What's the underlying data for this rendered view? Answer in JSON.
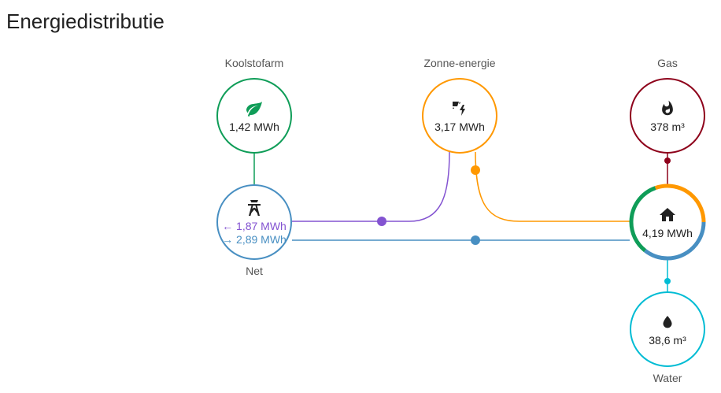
{
  "title": "Energiedistributie",
  "colors": {
    "low_carbon": "#0f9d58",
    "solar": "#ff9800",
    "grid_return": "#8353d1",
    "grid_consumption": "#488fc2",
    "gas": "#8e021b",
    "water": "#00bcd4"
  },
  "nodes": {
    "low_carbon": {
      "label": "Koolstofarm",
      "value": "1,42 MWh",
      "icon": "leaf-icon"
    },
    "solar": {
      "label": "Zonne-energie",
      "value": "3,17 MWh",
      "icon": "solar-power-icon"
    },
    "gas": {
      "label": "Gas",
      "value": "378 m³",
      "icon": "fire-icon"
    },
    "grid": {
      "label": "Net",
      "return": "← 1,87 MWh",
      "consumption": "→ 2,89 MWh",
      "icon": "transmission-tower-icon"
    },
    "home": {
      "value": "4,19 MWh",
      "icon": "home-icon"
    },
    "water": {
      "label": "Water",
      "value": "38,6 m³",
      "icon": "water-icon"
    }
  }
}
